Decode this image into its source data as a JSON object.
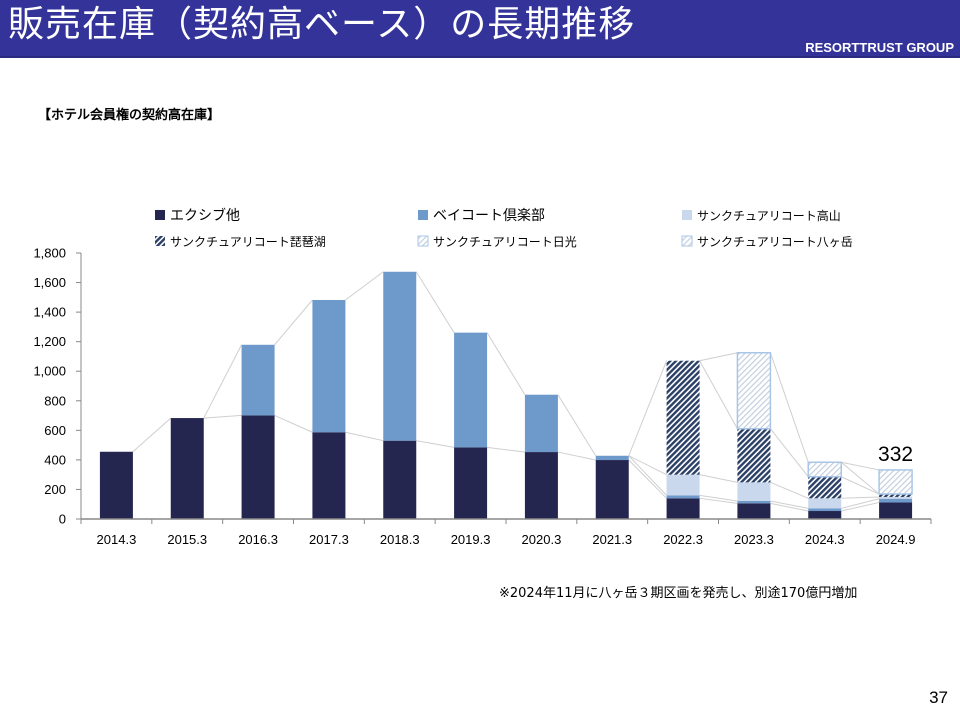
{
  "header": {
    "title": "販売在庫（契約高ベース）の長期推移",
    "brand": "RESORTTRUST GROUP"
  },
  "subtitle": "【ホテル会員権の契約高在庫】",
  "note": "※2024年11月に八ヶ岳３期区画を発売し、別途170億円増加",
  "page_number": "37",
  "colors": {
    "header_bg": "#333399",
    "excive": "#24264f",
    "baycourt": "#6e99cb",
    "takayama": "#c9d8ec",
    "biwako": "#2a3f66",
    "nikko": "#c9d8ec",
    "yatsugatake": "#a9c6e8"
  },
  "chart_data": {
    "type": "bar",
    "stacked": true,
    "title": "【ホテル会員権の契約高在庫】",
    "xlabel": "",
    "ylabel": "",
    "ylim": [
      0,
      1800
    ],
    "yticks": [
      0,
      200,
      400,
      600,
      800,
      1000,
      1200,
      1400,
      1600,
      1800
    ],
    "ytick_labels": [
      "0",
      "200",
      "400",
      "600",
      "800",
      "1,000",
      "1,200",
      "1,400",
      "1,600",
      "1,800"
    ],
    "grid": false,
    "legend_position": "top",
    "categories": [
      "2014.3",
      "2015.3",
      "2016.3",
      "2017.3",
      "2018.3",
      "2019.3",
      "2020.3",
      "2021.3",
      "2022.3",
      "2023.3",
      "2024.3",
      "2024.9"
    ],
    "series": [
      {
        "name": "エクシブ他",
        "pattern": "solid",
        "values": [
          455,
          683,
          701,
          587,
          530,
          485,
          453,
          399,
          140,
          106,
          54,
          112
        ]
      },
      {
        "name": "ベイコート倶楽部",
        "pattern": "solid",
        "values": [
          0,
          0,
          478,
          895,
          1143,
          776,
          388,
          29,
          20,
          16,
          18,
          25
        ]
      },
      {
        "name": "サンクチュアリコート高山",
        "pattern": "solid",
        "values": [
          0,
          0,
          0,
          0,
          0,
          0,
          0,
          0,
          140,
          126,
          68,
          12
        ]
      },
      {
        "name": "サンクチュアリコート琵琶湖",
        "pattern": "dark-hatch",
        "values": [
          0,
          0,
          0,
          0,
          0,
          0,
          0,
          0,
          771,
          363,
          146,
          20
        ]
      },
      {
        "name": "サンクチュアリコート日光",
        "pattern": "light-hatch",
        "values": [
          0,
          0,
          0,
          0,
          0,
          0,
          0,
          0,
          0,
          514,
          98,
          0
        ]
      },
      {
        "name": "サンクチュアリコート八ヶ岳",
        "pattern": "light-hatch-outline",
        "values": [
          0,
          0,
          0,
          0,
          0,
          0,
          0,
          0,
          0,
          0,
          0,
          163
        ]
      }
    ],
    "annotations": [
      {
        "category": "2024.9",
        "text": "332"
      }
    ]
  }
}
